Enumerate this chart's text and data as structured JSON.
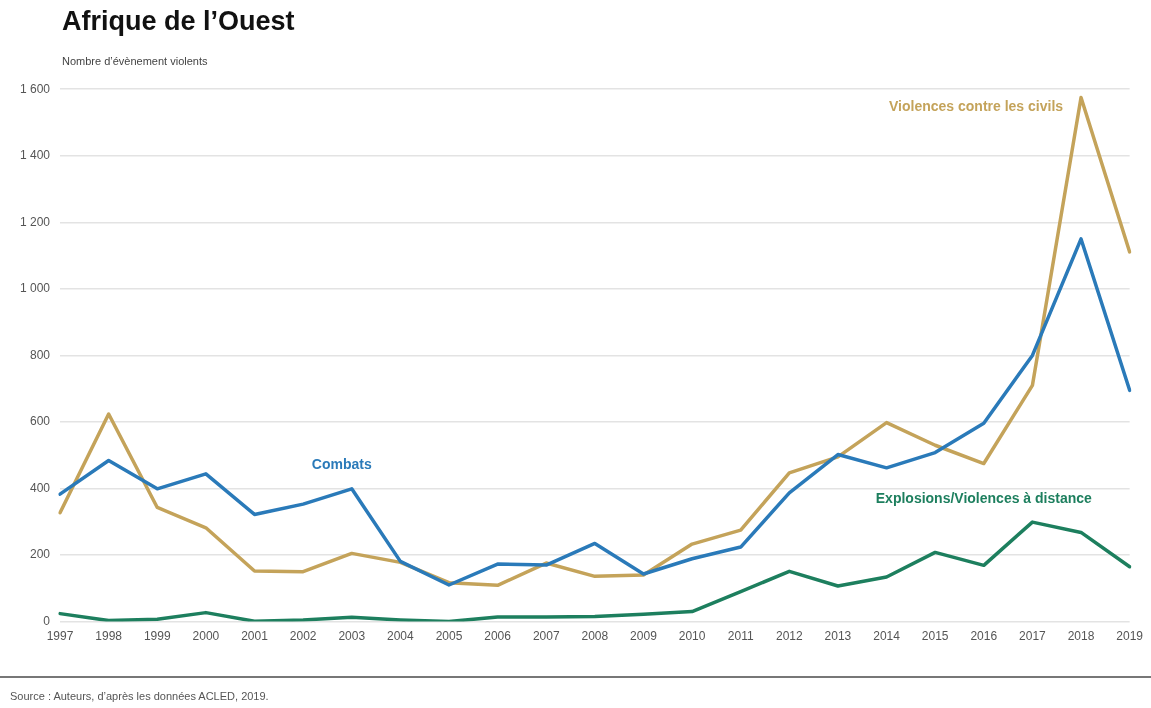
{
  "chart_data": {
    "type": "line",
    "title": "Afrique de l’Ouest",
    "ylabel": "Nombre d’évènement violents",
    "categories": [
      "1997",
      "1998",
      "1999",
      "2000",
      "2001",
      "2002",
      "2003",
      "2004",
      "2005",
      "2006",
      "2007",
      "2008",
      "2009",
      "2010",
      "2011",
      "2012",
      "2013",
      "2014",
      "2015",
      "2016",
      "2017",
      "2018",
      "2019"
    ],
    "series": [
      {
        "name": "Combats",
        "color": "#2a7ab9",
        "values": [
          383,
          484,
          399,
          444,
          322,
          353,
          399,
          181,
          110,
          173,
          170,
          235,
          143,
          189,
          224,
          387,
          502,
          462,
          508,
          596,
          800,
          1150,
          695
        ]
      },
      {
        "name": "Violences contre les civils",
        "color": "#c4a35a",
        "values": [
          327,
          624,
          343,
          282,
          152,
          150,
          205,
          178,
          117,
          109,
          176,
          136,
          140,
          233,
          275,
          447,
          495,
          598,
          530,
          475,
          710,
          1575,
          1111
        ]
      },
      {
        "name": "Explosions/Violences à distance",
        "color": "#1d7f5e",
        "values": [
          24,
          3,
          7,
          27,
          1,
          5,
          13,
          5,
          0,
          14,
          14,
          15,
          22,
          30,
          90,
          151,
          107,
          134,
          208,
          169,
          299,
          268,
          165
        ]
      }
    ],
    "ylim": [
      0,
      1600
    ],
    "yticks": [
      0,
      200,
      400,
      600,
      800,
      {
        "value": 1000,
        "label": "1 000"
      },
      {
        "value": 1200,
        "label": "1 200"
      },
      {
        "value": 1400,
        "label": "1 400"
      },
      {
        "value": 1600,
        "label": "1 600"
      }
    ],
    "grid": "y",
    "legend": false,
    "marker": "none",
    "line_style": "solid",
    "annotations": [
      "Source : Auteurs, d’après les données ACLED, 2019."
    ]
  }
}
